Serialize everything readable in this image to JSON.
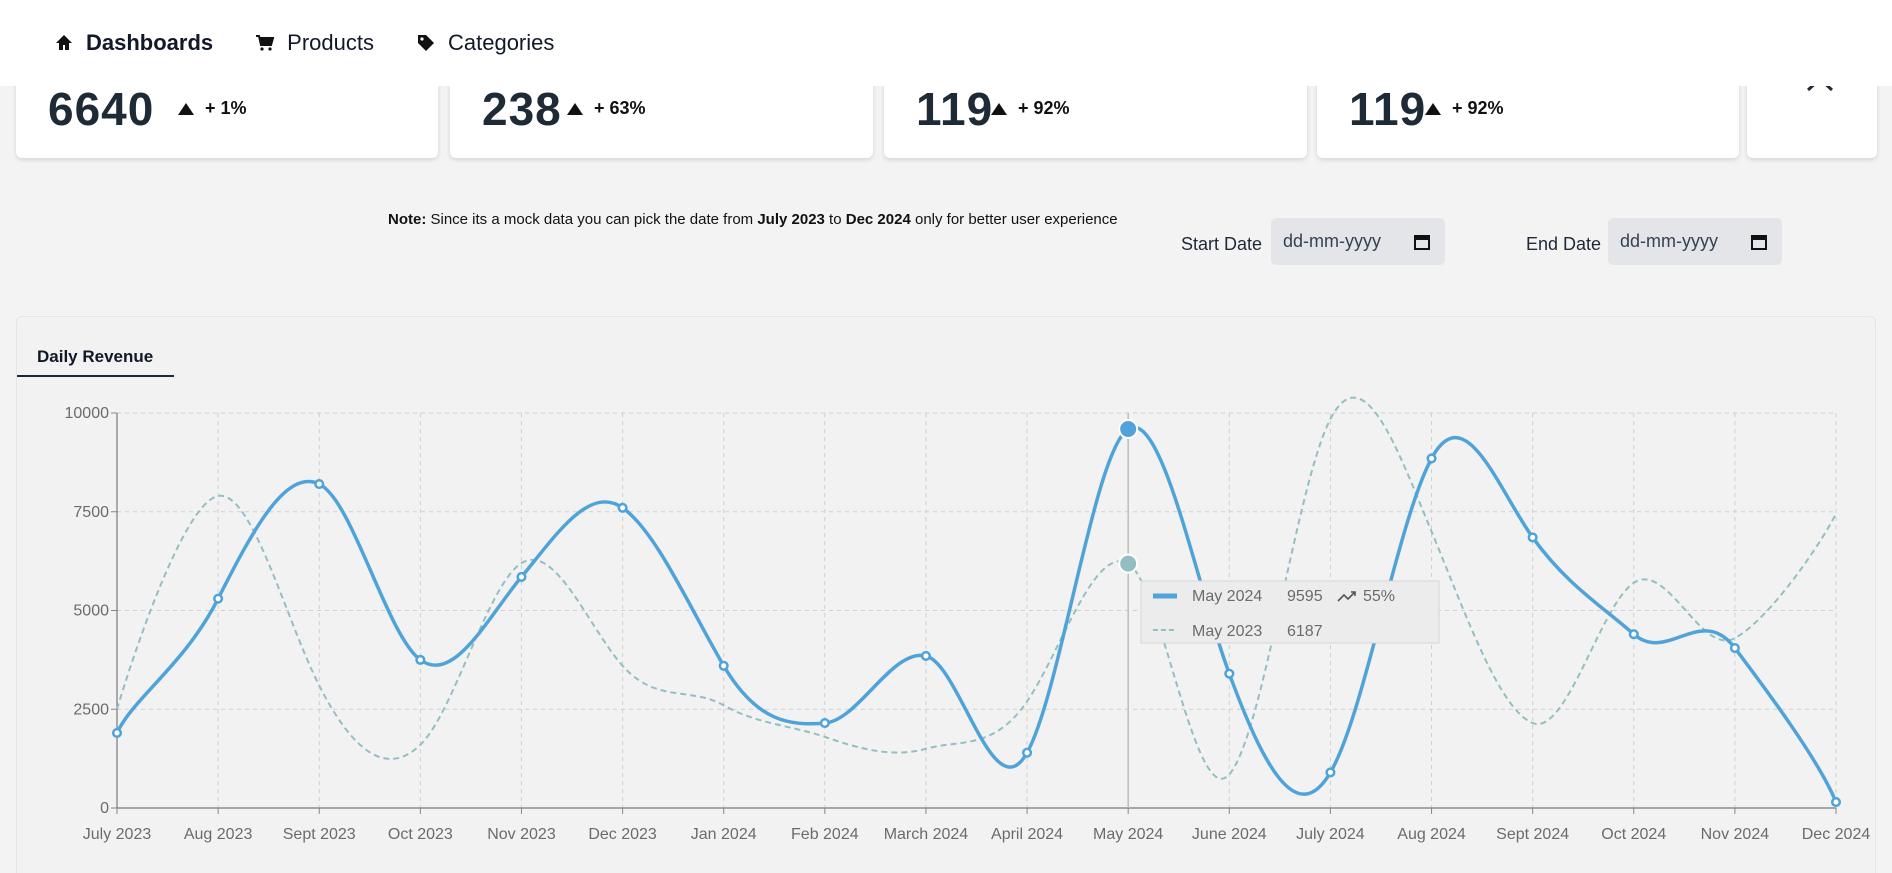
{
  "nav": {
    "items": [
      {
        "label": "Dashboards",
        "icon": "home-icon"
      },
      {
        "label": "Products",
        "icon": "cart-icon"
      },
      {
        "label": "Categories",
        "icon": "tag-icon"
      }
    ]
  },
  "cards": [
    {
      "value": "6640",
      "delta": "+ 1%"
    },
    {
      "value": "238",
      "delta": "+ 63%"
    },
    {
      "value": "119",
      "delta": "+ 92%"
    },
    {
      "value": "119",
      "delta": "+ 92%"
    }
  ],
  "note": {
    "prefix": "Note:",
    "text1": " Since its a mock data you can pick the date from ",
    "from": "July 2023",
    "text2": " to ",
    "to": "Dec 2024",
    "text3": " only for better user experience"
  },
  "dates": {
    "start_label": "Start Date",
    "start_placeholder": "dd-mm-yyyy",
    "end_label": "End Date",
    "end_placeholder": "dd-mm-yyyy"
  },
  "panel": {
    "tab": "Daily Revenue"
  },
  "colors": {
    "primary": "#4fa3d9",
    "secondary": "#93bfc2"
  },
  "chart_data": {
    "type": "line",
    "title": "",
    "categories": [
      "July 2023",
      "Aug 2023",
      "Sept 2023",
      "Oct 2023",
      "Nov 2023",
      "Dec 2023",
      "Jan 2024",
      "Feb 2024",
      "March 2024",
      "April 2024",
      "May 2024",
      "June 2024",
      "July 2024",
      "Aug 2024",
      "Sept 2024",
      "Oct 2024",
      "Nov 2024",
      "Dec 2024"
    ],
    "ylim": [
      0,
      10000
    ],
    "yticks": [
      0,
      2500,
      5000,
      7500,
      10000
    ],
    "grid": true,
    "series": [
      {
        "values": [
          1900,
          5300,
          8200,
          3750,
          5850,
          7600,
          3600,
          2150,
          3850,
          1400,
          9595,
          3400,
          900,
          8850,
          6850,
          4400,
          4050,
          150
        ]
      },
      {
        "values": [
          2500,
          7900,
          3100,
          1600,
          6200,
          3600,
          2600,
          1800,
          1500,
          2700,
          6187,
          850,
          9850,
          7000,
          2150,
          5700,
          4300,
          7450
        ]
      }
    ],
    "tooltip": {
      "rows": [
        {
          "label": "May 2024",
          "value": "9595",
          "change": "55%"
        },
        {
          "label": "May 2023",
          "value": "6187"
        }
      ]
    }
  }
}
